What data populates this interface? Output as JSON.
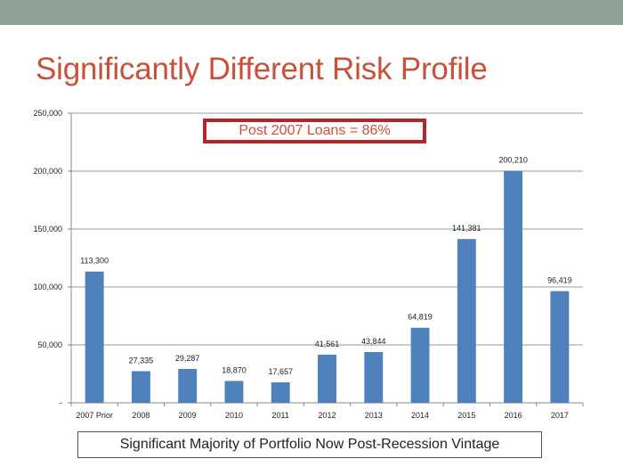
{
  "slide": {
    "title": "Significantly Different Risk Profile",
    "callout": "Post 2007 Loans = 86%",
    "footer": "Significant Majority of Portfolio Now Post-Recession Vintage"
  },
  "colors": {
    "band": "#8fa296",
    "title": "#c9513a",
    "bar": "#4f81bd",
    "callout_border": "#b3262b"
  },
  "chart_data": {
    "type": "bar",
    "title": "",
    "xlabel": "",
    "ylabel": "",
    "categories": [
      "2007 Prior",
      "2008",
      "2009",
      "2010",
      "2011",
      "2012",
      "2013",
      "2014",
      "2015",
      "2016",
      "2017"
    ],
    "values": [
      113300,
      27335,
      29287,
      18870,
      17657,
      41561,
      43844,
      64819,
      141381,
      200210,
      96419
    ],
    "value_labels": [
      "113,300",
      "27,335",
      "29,287",
      "18,870",
      "17,657",
      "41,561",
      "43,844",
      "64,819",
      "141,381",
      "200,210",
      "96,419"
    ],
    "ylim": [
      0,
      250000
    ],
    "yticks": [
      0,
      50000,
      100000,
      150000,
      200000,
      250000
    ],
    "ytick_labels": [
      "-",
      "50,000",
      "100,000",
      "150,000",
      "200,000",
      "250,000"
    ],
    "grid": true,
    "legend": "none"
  }
}
